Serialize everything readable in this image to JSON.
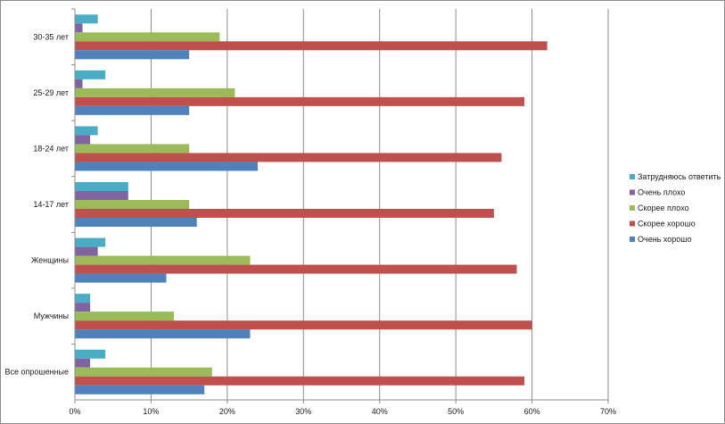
{
  "chart_data": {
    "type": "bar",
    "orientation": "horizontal",
    "categories": [
      "Все опрошенные",
      "Мужчины",
      "Женщины",
      "14-17 лет",
      "18-24 лет",
      "25-29 лет",
      "30-35 лет"
    ],
    "series": [
      {
        "name": "Очень хорошо",
        "color": "#4f81bd",
        "values": [
          17,
          23,
          12,
          16,
          24,
          15,
          15
        ]
      },
      {
        "name": "Скорее хорошо",
        "color": "#c0504d",
        "values": [
          59,
          60,
          58,
          55,
          56,
          59,
          62
        ]
      },
      {
        "name": "Скорее плохо",
        "color": "#9bbb59",
        "values": [
          18,
          13,
          23,
          15,
          15,
          21,
          19
        ]
      },
      {
        "name": "Очень плохо",
        "color": "#8064a2",
        "values": [
          2,
          2,
          3,
          7,
          2,
          1,
          1
        ]
      },
      {
        "name": "Затрудняюсь ответить",
        "color": "#4bacc6",
        "values": [
          4,
          2,
          4,
          7,
          3,
          4,
          3
        ]
      }
    ],
    "xlim": [
      0,
      70
    ],
    "x_ticks": [
      "0%",
      "10%",
      "20%",
      "30%",
      "40%",
      "50%",
      "60%",
      "70%"
    ],
    "grid": true,
    "legend_position": "right",
    "legend_order": [
      "Затрудняюсь ответить",
      "Очень плохо",
      "Скорее плохо",
      "Скорее хорошо",
      "Очень хорошо"
    ]
  }
}
